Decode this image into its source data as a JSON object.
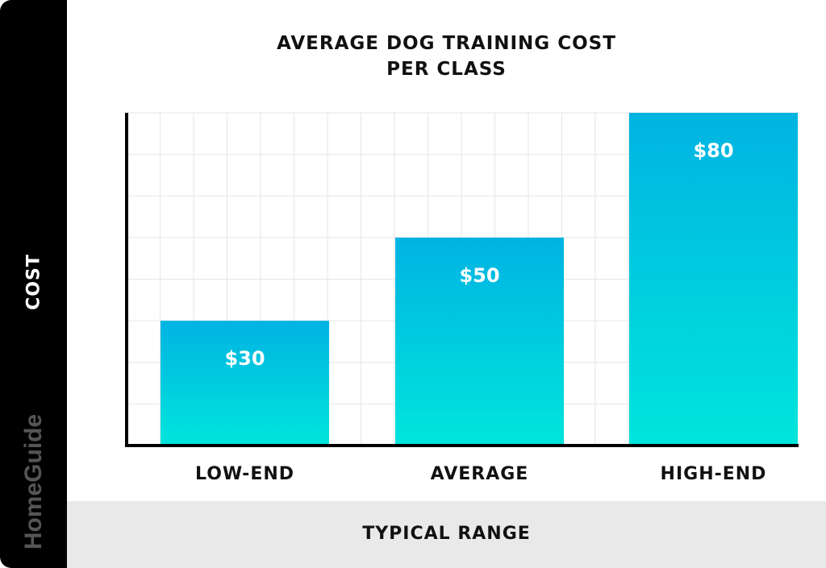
{
  "chart_data": {
    "type": "bar",
    "title_lines": [
      "AVERAGE DOG TRAINING COST",
      "PER CLASS"
    ],
    "categories": [
      "LOW-END",
      "AVERAGE",
      "HIGH-END"
    ],
    "values": [
      30,
      50,
      80
    ],
    "data_labels": [
      "$30",
      "$50",
      "$80"
    ],
    "xlabel": "TYPICAL RANGE",
    "ylabel": "COST",
    "ylim": [
      0,
      80
    ],
    "grid": true,
    "bar_gradient": [
      "#00b3e2",
      "#00e5dc"
    ],
    "logo": "HomeGuide"
  }
}
